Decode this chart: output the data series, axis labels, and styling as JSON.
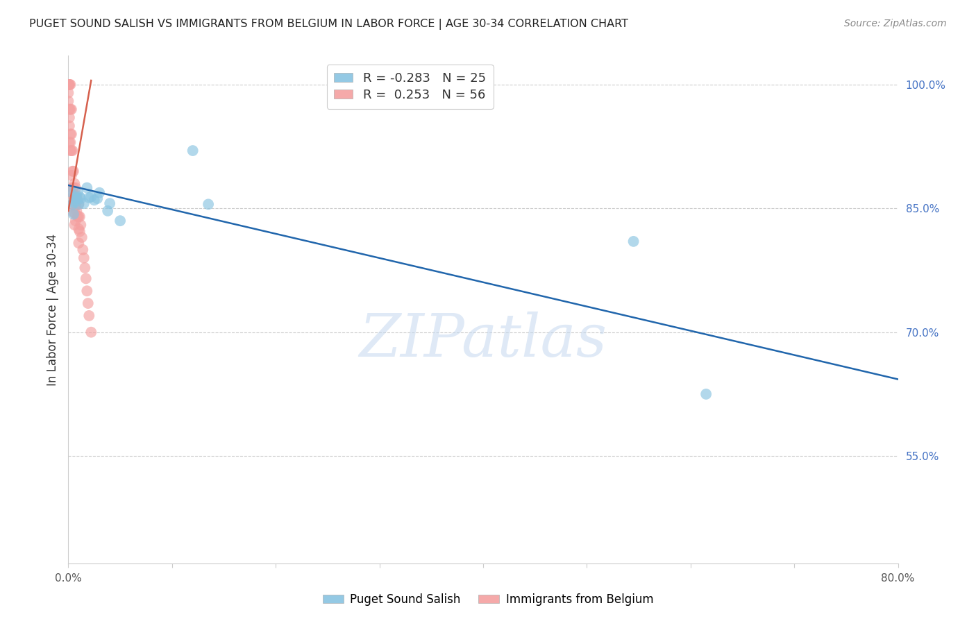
{
  "title": "PUGET SOUND SALISH VS IMMIGRANTS FROM BELGIUM IN LABOR FORCE | AGE 30-34 CORRELATION CHART",
  "source": "Source: ZipAtlas.com",
  "ylabel": "In Labor Force | Age 30-34",
  "xlim": [
    0.0,
    0.8
  ],
  "ylim": [
    0.42,
    1.035
  ],
  "xticks": [
    0.0,
    0.1,
    0.2,
    0.3,
    0.4,
    0.5,
    0.6,
    0.7,
    0.8
  ],
  "xticklabels": [
    "0.0%",
    "",
    "",
    "",
    "",
    "",
    "",
    "",
    "80.0%"
  ],
  "yticks_right": [
    1.0,
    0.85,
    0.7,
    0.55
  ],
  "yticklabels_right": [
    "100.0%",
    "85.0%",
    "70.0%",
    "55.0%"
  ],
  "legend_label1": "Puget Sound Salish",
  "legend_label2": "Immigrants from Belgium",
  "legend_R1": "-0.283",
  "legend_N1": "25",
  "legend_R2": "0.253",
  "legend_N2": "56",
  "color_blue": "#89c4e1",
  "color_pink": "#f4a0a0",
  "blue_scatter_x": [
    0.002,
    0.004,
    0.005,
    0.006,
    0.006,
    0.007,
    0.008,
    0.009,
    0.01,
    0.011,
    0.012,
    0.015,
    0.018,
    0.02,
    0.022,
    0.025,
    0.028,
    0.03,
    0.038,
    0.04,
    0.05,
    0.12,
    0.135,
    0.545,
    0.615
  ],
  "blue_scatter_y": [
    0.87,
    0.855,
    0.843,
    0.86,
    0.857,
    0.864,
    0.862,
    0.87,
    0.855,
    0.864,
    0.862,
    0.856,
    0.875,
    0.863,
    0.864,
    0.86,
    0.862,
    0.869,
    0.847,
    0.856,
    0.835,
    0.92,
    0.855,
    0.81,
    0.625
  ],
  "pink_scatter_x": [
    0.0,
    0.0,
    0.0,
    0.0,
    0.0,
    0.001,
    0.001,
    0.001,
    0.001,
    0.001,
    0.001,
    0.002,
    0.002,
    0.002,
    0.002,
    0.002,
    0.003,
    0.003,
    0.003,
    0.003,
    0.003,
    0.004,
    0.004,
    0.004,
    0.004,
    0.005,
    0.005,
    0.005,
    0.005,
    0.006,
    0.006,
    0.006,
    0.006,
    0.007,
    0.007,
    0.007,
    0.008,
    0.008,
    0.009,
    0.009,
    0.01,
    0.01,
    0.01,
    0.01,
    0.011,
    0.011,
    0.012,
    0.013,
    0.014,
    0.015,
    0.016,
    0.017,
    0.018,
    0.019,
    0.02,
    0.022
  ],
  "pink_scatter_y": [
    1.0,
    1.0,
    1.0,
    0.99,
    0.98,
    1.0,
    1.0,
    0.97,
    0.96,
    0.95,
    0.93,
    1.0,
    0.97,
    0.94,
    0.93,
    0.92,
    0.97,
    0.94,
    0.92,
    0.89,
    0.87,
    0.92,
    0.895,
    0.875,
    0.855,
    0.895,
    0.875,
    0.865,
    0.845,
    0.88,
    0.862,
    0.845,
    0.83,
    0.875,
    0.853,
    0.835,
    0.865,
    0.847,
    0.86,
    0.84,
    0.855,
    0.84,
    0.825,
    0.808,
    0.84,
    0.822,
    0.83,
    0.815,
    0.8,
    0.79,
    0.778,
    0.765,
    0.75,
    0.735,
    0.72,
    0.7
  ],
  "blue_line_x": [
    0.0,
    0.8
  ],
  "blue_line_y": [
    0.878,
    0.643
  ],
  "pink_line_x": [
    0.0,
    0.022
  ],
  "pink_line_y": [
    0.847,
    1.005
  ],
  "watermark": "ZIPatlas",
  "watermark_color": "#c5d8ef",
  "background_color": "#ffffff",
  "grid_color": "#cccccc",
  "spine_color": "#cccccc",
  "title_color": "#222222",
  "source_color": "#888888",
  "right_tick_color": "#4472c4",
  "blue_line_color": "#2166ac",
  "pink_line_color": "#d6604d"
}
